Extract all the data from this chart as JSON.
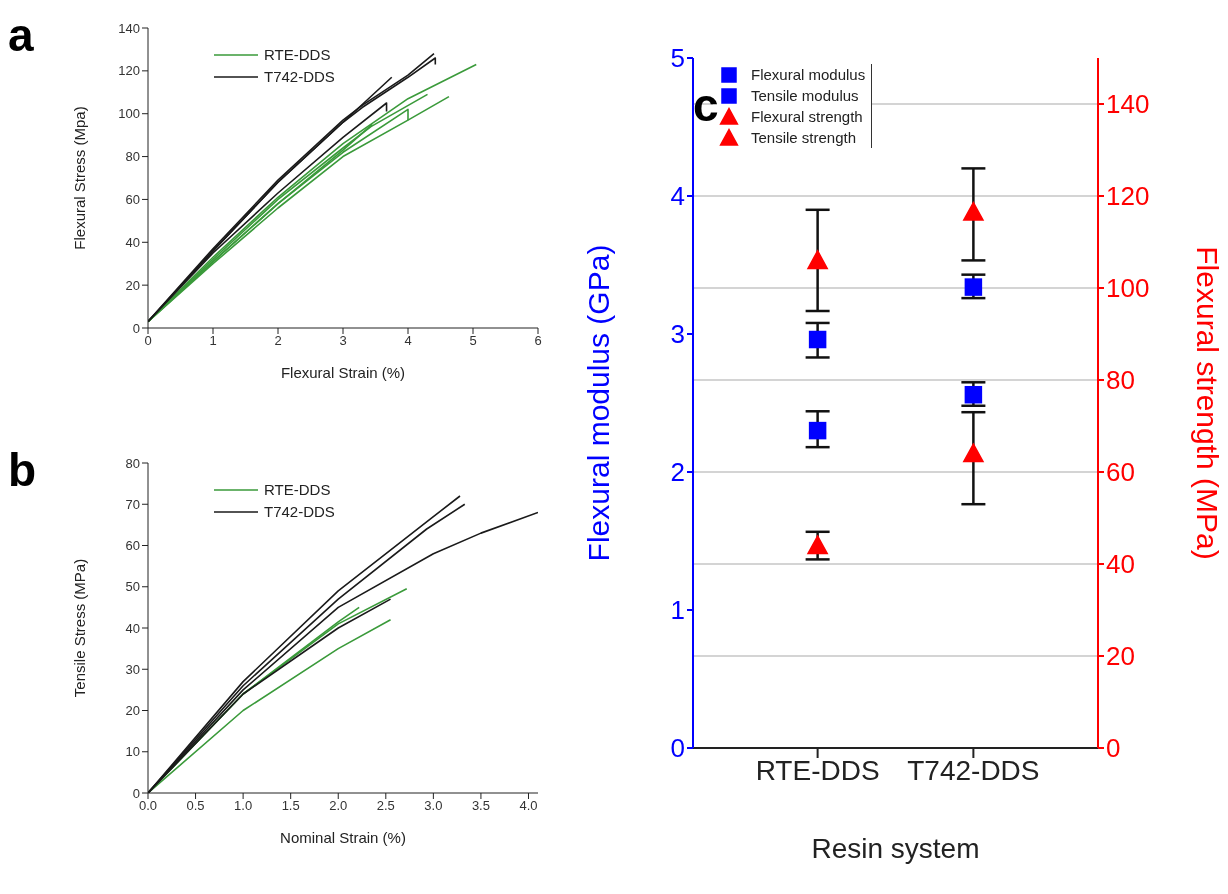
{
  "chart_data": [
    {
      "type": "line",
      "title": "a",
      "xlabel": "Flexural Strain (%)",
      "ylabel": "Flexural Stress (Mpa)",
      "xlim": [
        0,
        6
      ],
      "xticks": [
        0,
        1,
        2,
        3,
        4,
        5,
        6
      ],
      "ylim": [
        0,
        140
      ],
      "yticks": [
        0,
        20,
        40,
        60,
        80,
        100,
        120,
        140
      ],
      "legend": "top left",
      "marker": "none",
      "line_style": "solid",
      "series": [
        {
          "name": "RTE-DDS",
          "color": "#3a9a3a",
          "x": [
            0,
            1,
            2,
            3,
            4,
            5.05
          ],
          "values": [
            3,
            33,
            61,
            86,
            107,
            123
          ]
        },
        {
          "color": "#3a9a3a",
          "x": [
            0,
            1,
            2,
            3,
            3.43,
            4.3
          ],
          "values": [
            3,
            32,
            60,
            84,
            94,
            109
          ]
        },
        {
          "color": "#3a9a3a",
          "x": [
            0,
            1,
            2,
            3,
            4,
            4
          ],
          "values": [
            3,
            31,
            58,
            82,
            102,
            97
          ]
        },
        {
          "color": "#3a9a3a",
          "x": [
            0,
            1,
            2,
            3,
            4,
            4.63
          ],
          "values": [
            3,
            30,
            56,
            80,
            97,
            108
          ]
        },
        {
          "color": "#3a9a3a",
          "x": [
            0,
            1,
            2,
            3,
            3.45
          ],
          "values": [
            3,
            31,
            58,
            83,
            95
          ]
        },
        {
          "name": "T742-DDS",
          "color": "#1a1a1a",
          "x": [
            0,
            1,
            2,
            3,
            3.3,
            4,
            4.4
          ],
          "values": [
            3,
            37,
            69,
            97,
            104,
            118,
            128
          ]
        },
        {
          "color": "#1a1a1a",
          "x": [
            0,
            1,
            2,
            3,
            3.3,
            4,
            4.42,
            4.42
          ],
          "values": [
            3,
            36,
            68,
            96,
            103,
            117,
            126,
            123
          ]
        },
        {
          "color": "#1a1a1a",
          "x": [
            0,
            1,
            2,
            3,
            3.75
          ],
          "values": [
            3,
            36,
            68,
            96,
            117
          ]
        },
        {
          "color": "#1a1a1a",
          "x": [
            0,
            1,
            2,
            3,
            3.67,
            3.67
          ],
          "values": [
            3,
            35,
            63,
            89,
            105,
            101
          ]
        }
      ]
    },
    {
      "type": "line",
      "title": "b",
      "xlabel": "Nominal Strain (%)",
      "ylabel": "Tensile Stress (MPa)",
      "xlim": [
        0,
        4.1
      ],
      "xticks": [
        {
          "value": 0,
          "label": "0.0"
        },
        0.5,
        {
          "value": 1,
          "label": "1.0"
        },
        1.5,
        {
          "value": 2,
          "label": "2.0"
        },
        2.5,
        {
          "value": 3,
          "label": "3.0"
        },
        3.5,
        {
          "value": 4,
          "label": "4.0"
        }
      ],
      "ylim": [
        0,
        80
      ],
      "yticks": [
        0,
        10,
        20,
        30,
        40,
        50,
        60,
        70,
        80
      ],
      "legend": "top left",
      "marker": "none",
      "line_style": "solid",
      "series": [
        {
          "name": "RTE-DDS",
          "color": "#3a9a3a",
          "x": [
            0,
            1,
            2,
            2.72
          ],
          "values": [
            0,
            24,
            41,
            49.5
          ]
        },
        {
          "color": "#3a9a3a",
          "x": [
            0,
            1,
            2,
            2.22
          ],
          "values": [
            0,
            24,
            41.5,
            45
          ]
        },
        {
          "color": "#3a9a3a",
          "x": [
            0,
            1,
            2,
            2.55
          ],
          "values": [
            0,
            20,
            35,
            42
          ]
        },
        {
          "name": "T742-DDS",
          "color": "#1a1a1a",
          "x": [
            0,
            1,
            2,
            3,
            3.28
          ],
          "values": [
            0,
            27,
            49,
            67,
            72
          ]
        },
        {
          "color": "#1a1a1a",
          "x": [
            0,
            1,
            2,
            2.93,
            3.33
          ],
          "values": [
            0,
            26,
            47,
            64,
            70
          ]
        },
        {
          "color": "#1a1a1a",
          "x": [
            0,
            1,
            2,
            3,
            3.5,
            4.1
          ],
          "values": [
            0,
            25,
            45,
            58,
            63,
            68
          ]
        },
        {
          "color": "#1a1a1a",
          "x": [
            0,
            1,
            2,
            2.55
          ],
          "values": [
            0,
            24,
            40,
            47
          ]
        }
      ]
    },
    {
      "type": "scatter",
      "title": "c",
      "xlabel": "Resin system",
      "ylabel": "Flexural modulus (GPa)",
      "y2label": "Flexural strength (MPa)",
      "categories": [
        "RTE-DDS",
        "T742-DDS"
      ],
      "ylim": [
        0,
        5
      ],
      "yticks": [
        0,
        1,
        2,
        3,
        4,
        5
      ],
      "y2lim": [
        0,
        150
      ],
      "y2ticks": [
        0,
        20,
        40,
        60,
        80,
        100,
        120,
        140
      ],
      "grid": "y2",
      "legend": "top left",
      "series": [
        {
          "name": "Flexural modulus",
          "color": "#0000ff",
          "marker": "square",
          "values": [
            2.96,
            3.34
          ],
          "errors": [
            [
              2.83,
              3.08
            ],
            [
              3.26,
              3.43
            ]
          ]
        },
        {
          "name": "Tensile modulus",
          "color": "#0000ff",
          "marker": "square",
          "values": [
            2.3,
            2.56
          ],
          "errors": [
            [
              2.18,
              2.44
            ],
            [
              2.48,
              2.65
            ]
          ]
        },
        {
          "name": "Flexural strength",
          "color": "#ff0000",
          "marker": "triangle",
          "axis": "y2",
          "values": [
            106,
            116.5
          ],
          "errors": [
            [
              95,
              117
            ],
            [
              106,
              126
            ]
          ]
        },
        {
          "name": "Tensile strength",
          "color": "#ff0000",
          "marker": "triangle",
          "axis": "y2",
          "values": [
            44,
            64
          ],
          "errors": [
            [
              41,
              47
            ],
            [
              53,
              73
            ]
          ]
        }
      ]
    }
  ]
}
